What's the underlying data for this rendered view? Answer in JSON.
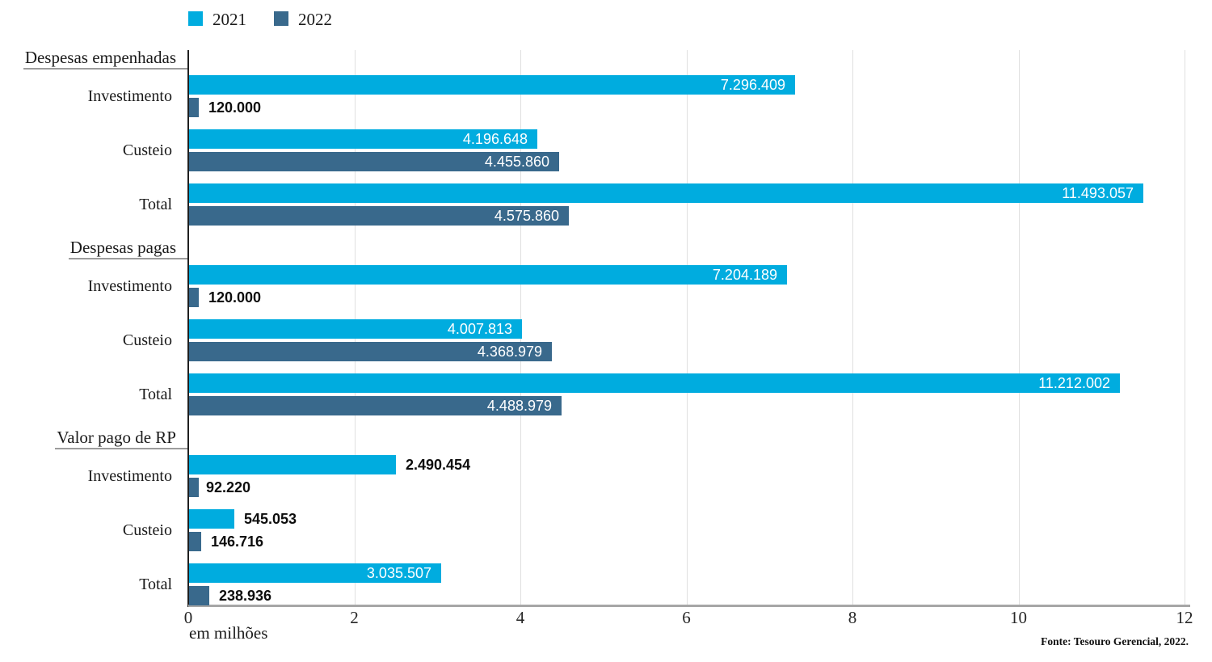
{
  "legend": [
    {
      "label": "2021",
      "color": "#00ACDF"
    },
    {
      "label": "2022",
      "color": "#39698C"
    }
  ],
  "chart_data": {
    "type": "bar",
    "orientation": "horizontal",
    "title": "",
    "x_caption": "em milhões",
    "xlim": [
      0,
      12000000
    ],
    "x_ticks": [
      "0",
      "2",
      "4",
      "6",
      "8",
      "10",
      "12"
    ],
    "grid": true,
    "legend_position": "top",
    "series_names": [
      "2021",
      "2022"
    ],
    "groups": [
      {
        "title": "Despesas empenhadas",
        "rows": [
          {
            "label": "Investimento",
            "values": [
              7296409,
              120000
            ],
            "labels": [
              "7.296.409",
              "120.000"
            ]
          },
          {
            "label": "Custeio",
            "values": [
              4196648,
              4455860
            ],
            "labels": [
              "4.196.648",
              "4.455.860"
            ]
          },
          {
            "label": "Total",
            "values": [
              11493057,
              4575860
            ],
            "labels": [
              "11.493.057",
              "4.575.860"
            ]
          }
        ]
      },
      {
        "title": "Despesas pagas",
        "rows": [
          {
            "label": "Investimento",
            "values": [
              7204189,
              120000
            ],
            "labels": [
              "7.204.189",
              "120.000"
            ]
          },
          {
            "label": "Custeio",
            "values": [
              4007813,
              4368979
            ],
            "labels": [
              "4.007.813",
              "4.368.979"
            ]
          },
          {
            "label": "Total",
            "values": [
              11212002,
              4488979
            ],
            "labels": [
              "11.212.002",
              "4.488.979"
            ]
          }
        ]
      },
      {
        "title": "Valor pago de RP",
        "rows": [
          {
            "label": "Investimento",
            "values": [
              2490454,
              92220
            ],
            "labels": [
              "2.490.454",
              "92.220"
            ]
          },
          {
            "label": "Custeio",
            "values": [
              545053,
              146716
            ],
            "labels": [
              "545.053",
              "146.716"
            ]
          },
          {
            "label": "Total",
            "values": [
              3035507,
              238936
            ],
            "labels": [
              "3.035.507",
              "238.936"
            ]
          }
        ]
      }
    ]
  },
  "footer": {
    "source": "Fonte: Tesouro Gerencial, 2022."
  },
  "colors": {
    "series_2021": "#00ACDF",
    "series_2022": "#39698C",
    "gridline": "#e0e0e0",
    "axis_line": "#a6a6a6",
    "vertical_axis": "#1f1f1f"
  }
}
